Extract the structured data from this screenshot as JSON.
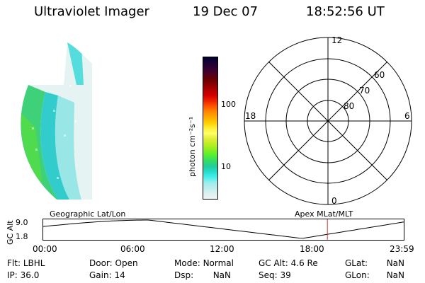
{
  "header": {
    "instrument": "Ultraviolet Imager",
    "date": "19 Dec 07",
    "time": "18:52:56 UT"
  },
  "colorbar": {
    "unit_label": "photon cm⁻²s⁻¹",
    "tick_labels": [
      "100",
      "10"
    ],
    "ticks": [
      100,
      10
    ],
    "colors": [
      "#000033",
      "#1a0033",
      "#330033",
      "#4d0026",
      "#660000",
      "#8a0000",
      "#b30000",
      "#d40000",
      "#ee2200",
      "#ff5500",
      "#ff8800",
      "#ffaa00",
      "#ffcc00",
      "#ffee33",
      "#ffff66",
      "#ddee33",
      "#bbee22",
      "#88ee22",
      "#55ee33",
      "#33dd66",
      "#22cc99",
      "#22ddcc",
      "#44eeee",
      "#99eeee",
      "#bbeeee",
      "#ddf0f0",
      "#eef6f6"
    ]
  },
  "polar_plot": {
    "mlt_labels": {
      "top": "12",
      "bottom": "0",
      "left": "18",
      "right": "6"
    },
    "lat_labels": [
      "80",
      "70",
      "60"
    ]
  },
  "timeline": {
    "ylabel": "GC Alt",
    "y_ticks": [
      "9.0",
      "1.8"
    ],
    "left_title": "Geographic Lat/Lon",
    "right_title": "Apex MLat/MLT",
    "x_ticks": [
      "00:00",
      "06:00",
      "12:00",
      "18:00",
      "23:59"
    ],
    "marker_color": "#cc3333",
    "current_time_hours": 18.88
  },
  "status": {
    "row1": [
      {
        "label": "Flt:",
        "value": "LBHL"
      },
      {
        "label": "Door:",
        "value": "Open"
      },
      {
        "label": "Mode:",
        "value": "Normal"
      },
      {
        "label": "GC Alt:",
        "value": "4.6 Re"
      },
      {
        "label": "GLat:",
        "value": "NaN"
      }
    ],
    "row2": [
      {
        "label": "IP:",
        "value": "36.0"
      },
      {
        "label": "Gain:",
        "value": "14"
      },
      {
        "label": "Dsp:",
        "value": "NaN"
      },
      {
        "label": "Seq:",
        "value": "39"
      },
      {
        "label": "GLon:",
        "value": "NaN"
      }
    ]
  }
}
